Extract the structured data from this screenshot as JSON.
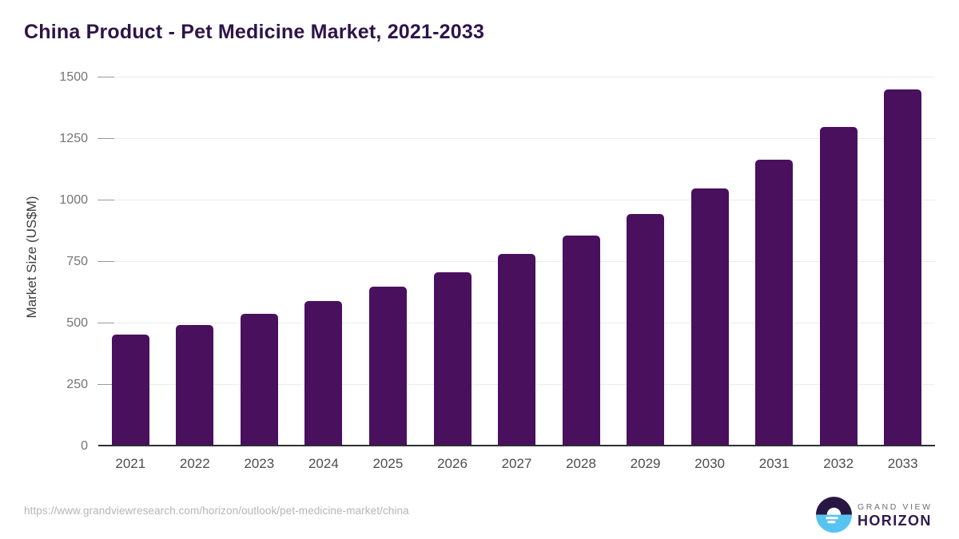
{
  "chart": {
    "title": "China Product - Pet Medicine Market, 2021-2033",
    "y_axis_label": "Market Size (US$M)"
  },
  "chart_data": {
    "type": "bar",
    "title": "China Product - Pet Medicine Market, 2021-2033",
    "categories": [
      "2021",
      "2022",
      "2023",
      "2024",
      "2025",
      "2026",
      "2027",
      "2028",
      "2029",
      "2030",
      "2031",
      "2032",
      "2033"
    ],
    "values": [
      451,
      491,
      536,
      588,
      645,
      705,
      780,
      854,
      942,
      1046,
      1162,
      1296,
      1449
    ],
    "xlabel": "",
    "ylabel": "Market Size (US$M)",
    "ylim": [
      0,
      1500
    ],
    "yticks": [
      0,
      250,
      500,
      750,
      1000,
      1250,
      1500
    ],
    "grid": true,
    "legend": "none",
    "bar_color": "#49105e"
  },
  "footer": {
    "source_url": "https://www.grandviewresearch.com/horizon/outlook/pet-medicine-market/china",
    "brand_line1": "GRAND VIEW",
    "brand_line2": "HORIZON"
  },
  "colors": {
    "bar": "#49105e",
    "title_text": "#2e1449",
    "gridline": "#ebebeb",
    "tick_mark": "#9a9a9a",
    "y_tick_text": "#757575",
    "x_tick_text": "#4d4d4d",
    "axis_line": "#2e2e34",
    "url_text": "#b5b5b5",
    "logo_dark": "#281743",
    "logo_blue": "#57c3f1",
    "brand_gray": "#6f6f7a"
  }
}
